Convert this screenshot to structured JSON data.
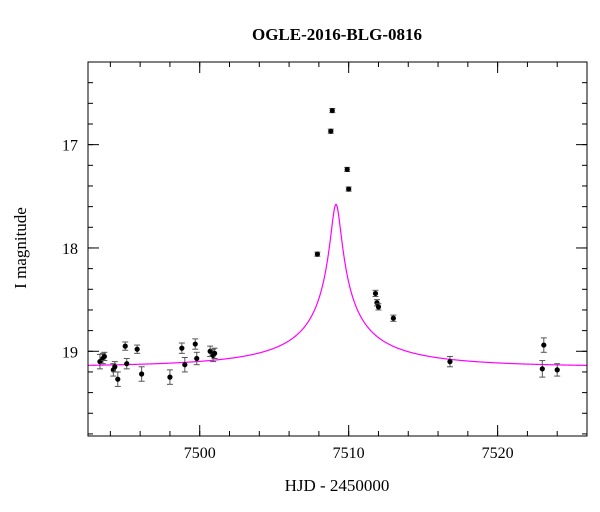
{
  "chart_data": {
    "type": "scatter",
    "title": "OGLE-2016-BLG-0816",
    "xlabel": "HJD - 2450000",
    "ylabel": "I magnitude",
    "xlim": [
      7492.5,
      7526.0
    ],
    "ylim": [
      19.82,
      16.2
    ],
    "y_inverted": true,
    "x_ticks": [
      7500,
      7510,
      7520
    ],
    "x_tick_labels": [
      "7500",
      "7510",
      "7520"
    ],
    "y_ticks": [
      17,
      18,
      19
    ],
    "y_tick_labels": [
      "17",
      "18",
      "19"
    ],
    "x_minor_step": 2,
    "y_minor_step": 0.2,
    "grid": false,
    "model_color": "#ff00ff",
    "point_color": "#000000",
    "model": {
      "t0": 7509.15,
      "tE": 10.78,
      "u0": 0.031,
      "fs": 0.104,
      "fb": 0.896,
      "baseline_mag": 19.15
    },
    "points": [
      {
        "x": 7493.3,
        "y": 19.1,
        "err": 0.07
      },
      {
        "x": 7493.5,
        "y": 19.07,
        "err": 0.05
      },
      {
        "x": 7493.6,
        "y": 19.05,
        "err": 0.04
      },
      {
        "x": 7494.2,
        "y": 19.18,
        "err": 0.06
      },
      {
        "x": 7494.3,
        "y": 19.15,
        "err": 0.05
      },
      {
        "x": 7494.5,
        "y": 19.27,
        "err": 0.07
      },
      {
        "x": 7495.0,
        "y": 18.95,
        "err": 0.04
      },
      {
        "x": 7495.1,
        "y": 19.12,
        "err": 0.05
      },
      {
        "x": 7495.8,
        "y": 18.98,
        "err": 0.04
      },
      {
        "x": 7496.1,
        "y": 19.22,
        "err": 0.07
      },
      {
        "x": 7498.0,
        "y": 19.25,
        "err": 0.07
      },
      {
        "x": 7498.8,
        "y": 18.97,
        "err": 0.05
      },
      {
        "x": 7499.0,
        "y": 19.13,
        "err": 0.07
      },
      {
        "x": 7499.7,
        "y": 18.93,
        "err": 0.05
      },
      {
        "x": 7499.8,
        "y": 19.07,
        "err": 0.06
      },
      {
        "x": 7500.7,
        "y": 19.0,
        "err": 0.05
      },
      {
        "x": 7500.9,
        "y": 19.04,
        "err": 0.06
      },
      {
        "x": 7501.0,
        "y": 19.02,
        "err": 0.05
      },
      {
        "x": 7507.9,
        "y": 18.06,
        "err": 0.02
      },
      {
        "x": 7508.8,
        "y": 16.87,
        "err": 0.02
      },
      {
        "x": 7508.9,
        "y": 16.67,
        "err": 0.02
      },
      {
        "x": 7509.9,
        "y": 17.24,
        "err": 0.02
      },
      {
        "x": 7510.0,
        "y": 17.43,
        "err": 0.02
      },
      {
        "x": 7511.8,
        "y": 18.44,
        "err": 0.03
      },
      {
        "x": 7511.9,
        "y": 18.53,
        "err": 0.03
      },
      {
        "x": 7512.0,
        "y": 18.57,
        "err": 0.03
      },
      {
        "x": 7513.0,
        "y": 18.68,
        "err": 0.03
      },
      {
        "x": 7516.8,
        "y": 19.1,
        "err": 0.05
      },
      {
        "x": 7523.0,
        "y": 19.17,
        "err": 0.08
      },
      {
        "x": 7523.1,
        "y": 18.94,
        "err": 0.07
      },
      {
        "x": 7524.0,
        "y": 19.18,
        "err": 0.06
      }
    ]
  }
}
